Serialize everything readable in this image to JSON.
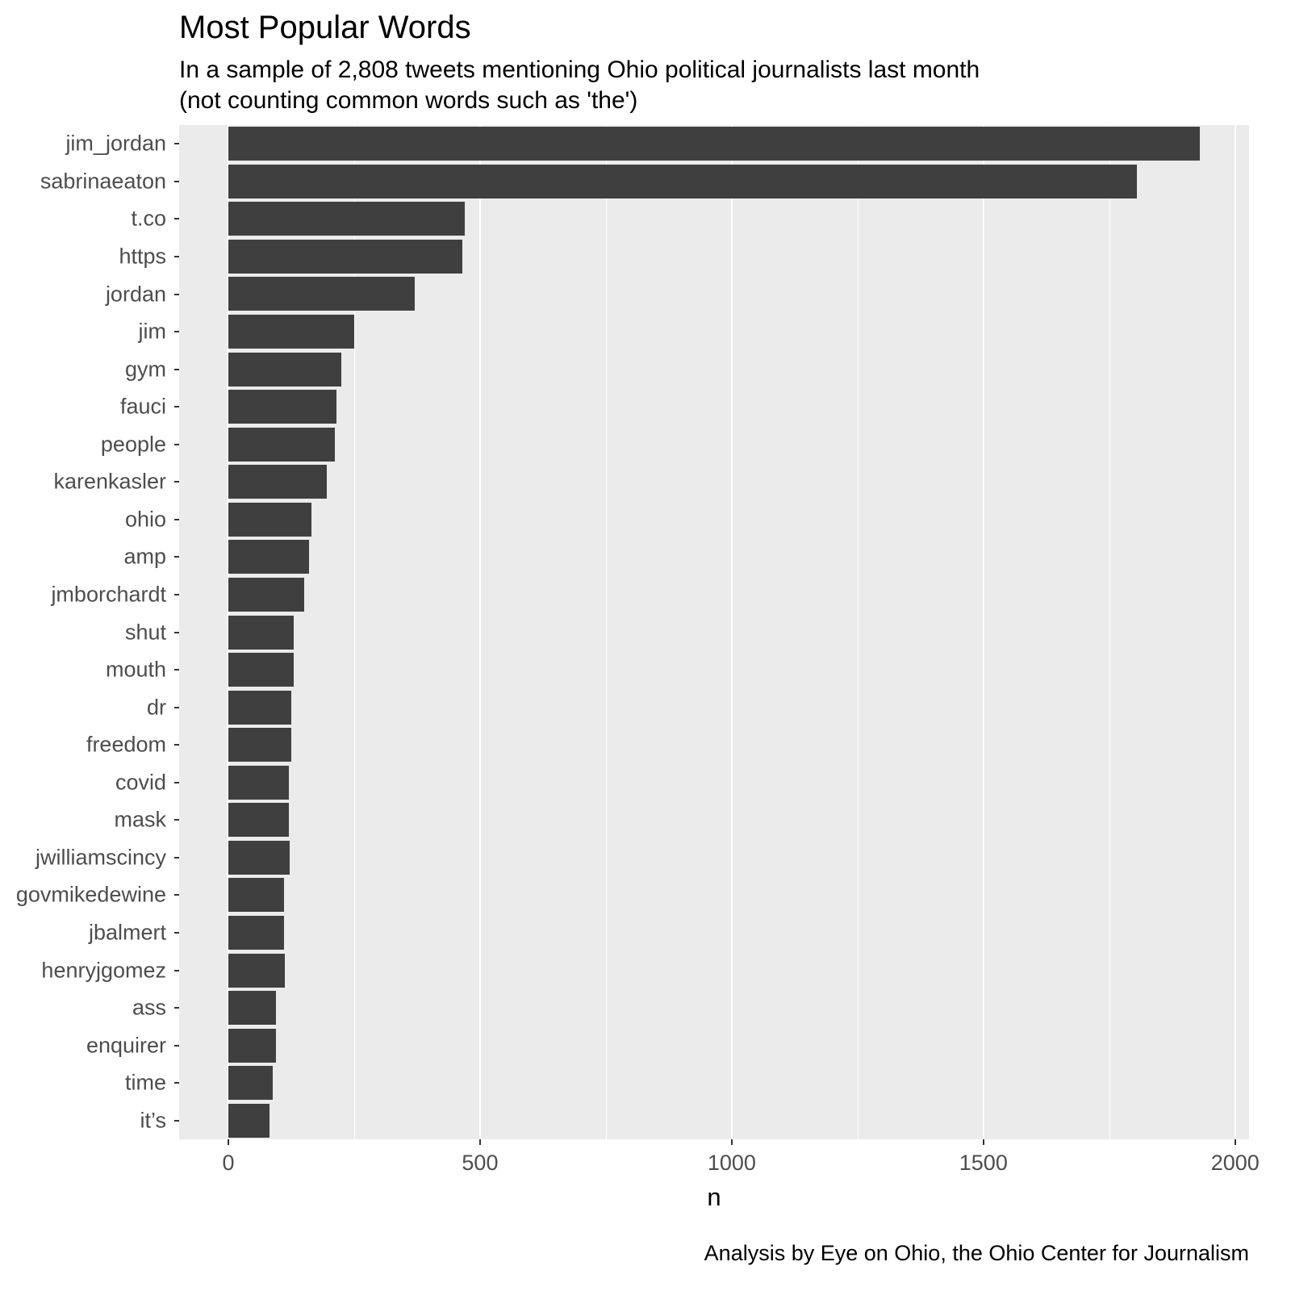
{
  "chart_data": {
    "type": "bar",
    "orientation": "horizontal",
    "title": "Most Popular Words",
    "subtitle": "In a sample of 2,808 tweets mentioning Ohio political journalists last month\n (not counting common words such as 'the')",
    "caption": "Analysis by Eye on Ohio, the Ohio Center for Journalism",
    "xlabel": "n",
    "ylabel": "",
    "categories": [
      "jim_jordan",
      "sabrinaeaton",
      "t.co",
      "https",
      "jordan",
      "jim",
      "gym",
      "fauci",
      "people",
      "karenkasler",
      "ohio",
      "amp",
      "jmborchardt",
      "shut",
      "mouth",
      "dr",
      "freedom",
      "covid",
      "mask",
      "jwilliamscincy",
      "govmikedewine",
      "jbalmert",
      "henryjgomez",
      "ass",
      "enquirer",
      "time",
      "it’s"
    ],
    "values": [
      1930,
      1805,
      470,
      465,
      370,
      250,
      225,
      215,
      212,
      195,
      165,
      160,
      150,
      130,
      130,
      125,
      125,
      120,
      120,
      122,
      110,
      110,
      112,
      95,
      95,
      88,
      82
    ],
    "xlim": [
      0,
      2000
    ],
    "x_major_ticks": [
      0,
      500,
      1000,
      1500,
      2000
    ],
    "x_minor_ticks": [
      250,
      750,
      1250,
      1750
    ],
    "grid": true,
    "legend": "none",
    "colors": {
      "bar": "#3F3F3F",
      "panel_bg": "#EBEBEB",
      "grid": "#FFFFFF",
      "axis_text": "#4D4D4D",
      "text": "#000000"
    }
  }
}
